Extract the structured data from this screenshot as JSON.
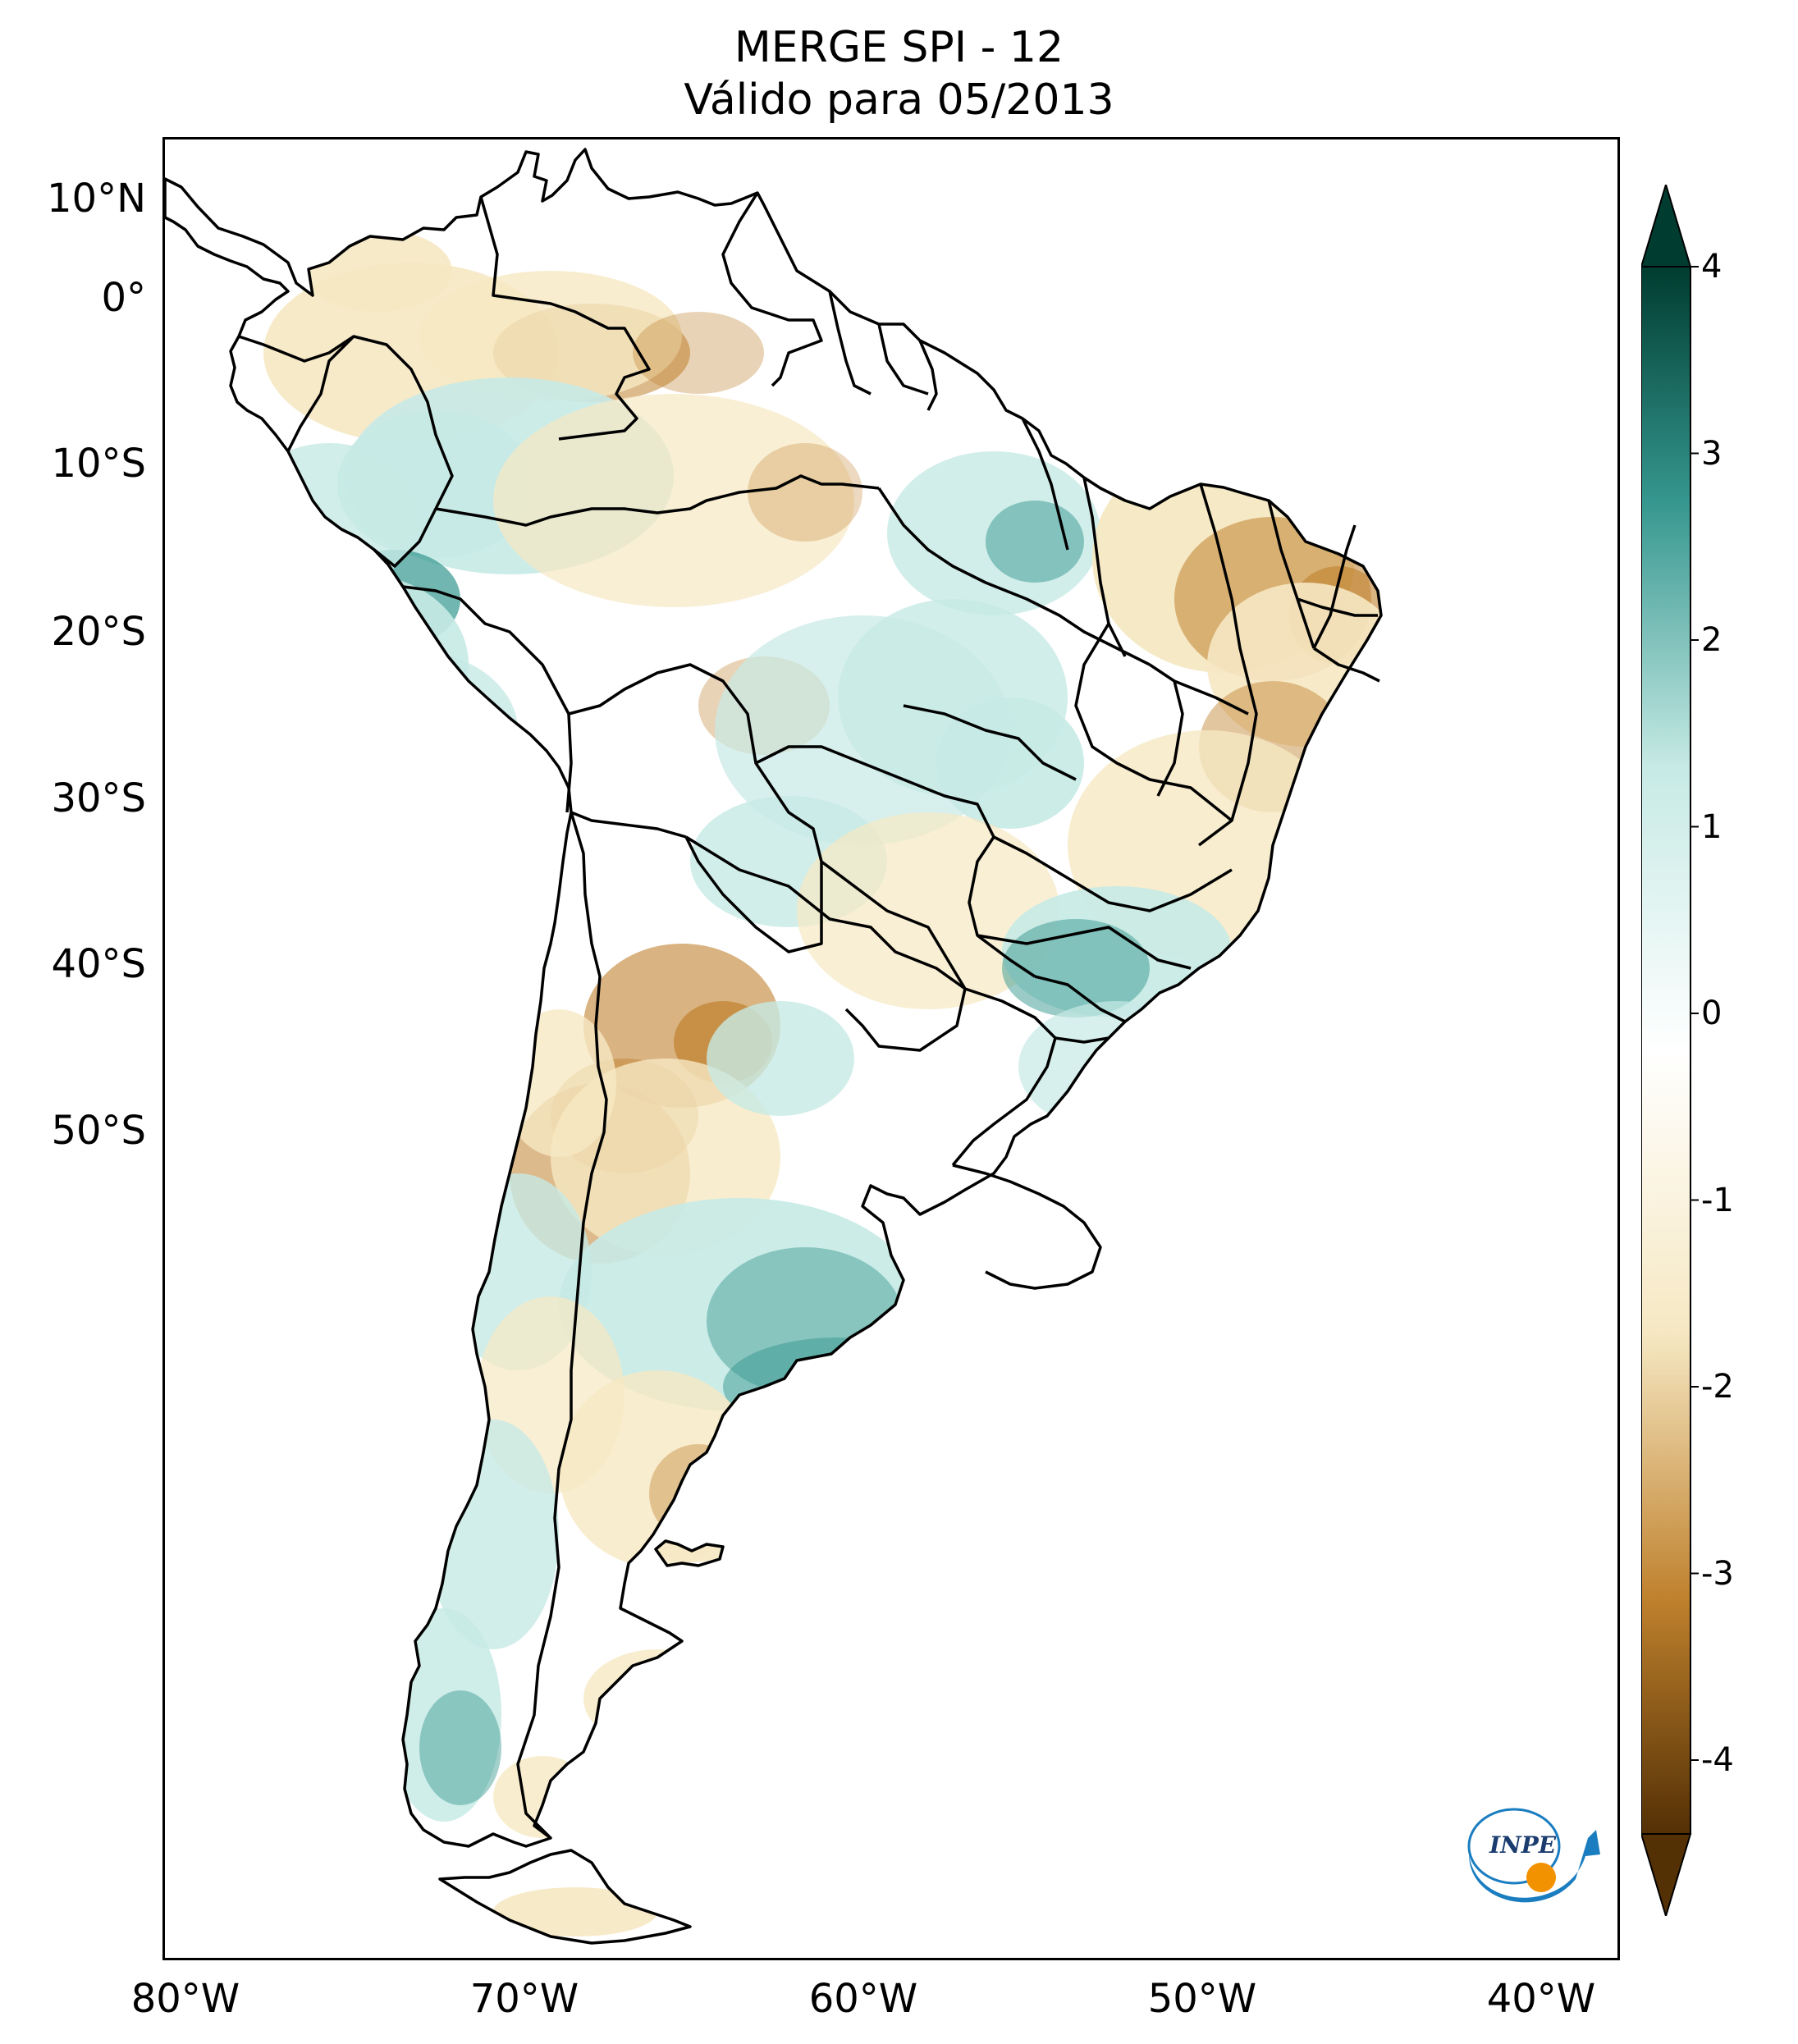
{
  "title": {
    "line1": "MERGE   SPI - 12",
    "line2": "Válido para 05/2013"
  },
  "map": {
    "extent_lon": [
      -85,
      -30
    ],
    "extent_lat": [
      -57,
      13
    ],
    "country_borders": "black",
    "lat_ticks": [
      {
        "label": "10°N",
        "value": 10
      },
      {
        "label": "0°",
        "value": 0
      },
      {
        "label": "10°S",
        "value": -10
      },
      {
        "label": "20°S",
        "value": -20
      },
      {
        "label": "30°S",
        "value": -30
      },
      {
        "label": "40°S",
        "value": -40
      },
      {
        "label": "50°S",
        "value": -50
      }
    ],
    "lon_ticks": [
      {
        "label": "80°W",
        "value": -80
      },
      {
        "label": "70°W",
        "value": -70
      },
      {
        "label": "60°W",
        "value": -60
      },
      {
        "label": "50°W",
        "value": -50
      },
      {
        "label": "40°W",
        "value": -40
      }
    ]
  },
  "colorbar": {
    "range": [
      -4,
      4
    ],
    "extend": "both",
    "ticks": [
      {
        "label": "4",
        "value": 4
      },
      {
        "label": "3",
        "value": 3
      },
      {
        "label": "2",
        "value": 2
      },
      {
        "label": "1",
        "value": 1
      },
      {
        "label": "0",
        "value": 0
      },
      {
        "label": "-1",
        "value": -1
      },
      {
        "label": "-2",
        "value": -2
      },
      {
        "label": "-3",
        "value": -3
      },
      {
        "label": "-4",
        "value": -4
      }
    ],
    "colors": {
      "max": "#003c30",
      "high": "#35978f",
      "mid_high": "#c7eae5",
      "neutral": "#ffffff",
      "mid_low": "#f6e8c3",
      "low": "#bf812d",
      "min": "#543005"
    }
  },
  "logo": {
    "text": "INPE",
    "colors": {
      "arc": "#1a7dc0",
      "dot": "#f39200"
    }
  }
}
